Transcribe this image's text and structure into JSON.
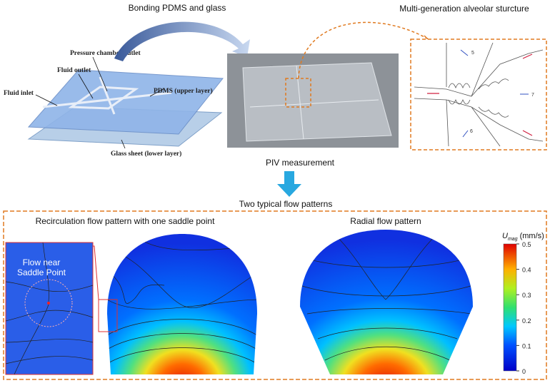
{
  "top": {
    "bonding_label": "Bonding PDMS and glass",
    "alveolar_title": "Multi-generation alveolar sturcture",
    "piv_label": "PIV measurement"
  },
  "device": {
    "pressure_chamber_outlet": "Pressure chamber outlet",
    "fluid_outlet": "Fluid outlet",
    "fluid_inlet": "Fluid inlet",
    "pdms": "PDMS (upper layer)",
    "glass": "Glass sheet (lower layer)"
  },
  "alveolar": {
    "labels": [
      "5",
      "7",
      "6"
    ]
  },
  "flow": {
    "title": "Two typical flow patterns",
    "recirculation_title": "Recirculation flow pattern with one saddle point",
    "radial_title": "Radial flow pattern",
    "inset_label": [
      "Flow near",
      "Saddle Point"
    ]
  },
  "colorbar": {
    "symbol": "U",
    "subscript": "mag",
    "unit": "(mm/s)",
    "lim": [
      0,
      0.5
    ],
    "ticks": [
      0.5,
      0.4,
      0.3,
      0.2,
      0.1,
      0
    ]
  }
}
